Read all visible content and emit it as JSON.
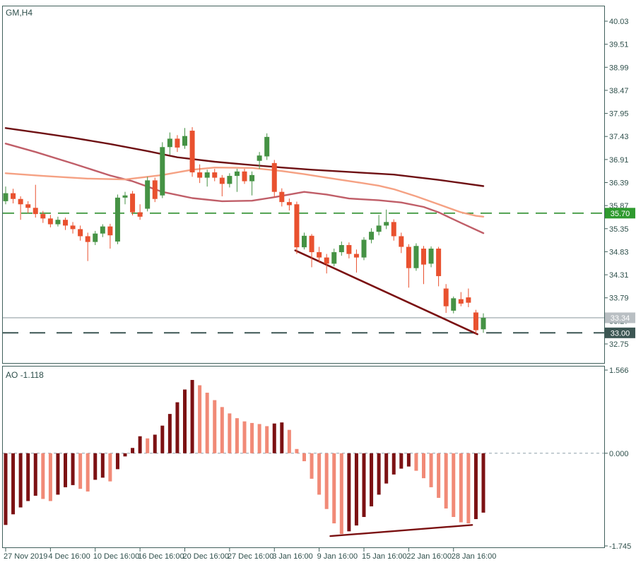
{
  "window": {
    "symbol_label": "GM,H4"
  },
  "ao_panel": {
    "name": "AO",
    "value": "-1.118"
  },
  "colors": {
    "background": "#ffffff",
    "border": "#41605c",
    "text": "#2e4f4b",
    "bull_candle": "#459244",
    "bear_candle": "#e9512f",
    "ma_slow": "#6e1013",
    "ma_medium": "#c05e68",
    "ma_fast": "#f5a183",
    "trendline": "#7a0f10",
    "level_green": "#2f8f2f",
    "bid_line": "#a9b2b6",
    "bid_box": "#b9bfc3",
    "level_dark": "#3c5653",
    "ao_up": "#7c1113",
    "ao_down": "#f18a77",
    "ao_zero_line": "#8fa0ac",
    "box_text": "#ffffff"
  },
  "chart_data": {
    "type": "candlestick",
    "symbol": "GM",
    "timeframe": "H4",
    "title": "GM,H4",
    "indicator": "Awesome Oscillator",
    "grid": false,
    "price_axis": {
      "side": "right",
      "ticks": [
        40.03,
        39.51,
        38.99,
        38.47,
        37.95,
        37.43,
        36.91,
        36.39,
        35.87,
        35.35,
        34.83,
        34.31,
        33.79,
        33.27,
        32.75
      ],
      "tick_labels": [
        "40.03",
        "39.51",
        "38.99",
        "38.47",
        "37.95",
        "37.43",
        "36.91",
        "36.39",
        "35.87",
        "35.35",
        "34.83",
        "34.31",
        "33.79",
        "33.27",
        "32.75"
      ]
    },
    "time_axis": {
      "labels": [
        {
          "index": 0,
          "label": "27 Nov 2019"
        },
        {
          "index": 6,
          "label": "4 Dec 16:00"
        },
        {
          "index": 12,
          "label": "10 Dec 16:00"
        },
        {
          "index": 18,
          "label": "16 Dec 16:00"
        },
        {
          "index": 24,
          "label": "20 Dec 16:00"
        },
        {
          "index": 30,
          "label": "27 Dec 16:00"
        },
        {
          "index": 36,
          "label": "3 Jan 16:00"
        },
        {
          "index": 42,
          "label": "9 Jan 16:00"
        },
        {
          "index": 48,
          "label": "15 Jan 16:00"
        },
        {
          "index": 54,
          "label": "22 Jan 16:00"
        },
        {
          "index": 60,
          "label": "28 Jan 16:00"
        }
      ]
    },
    "candles": [
      [
        35.97,
        36.3,
        35.9,
        36.15
      ],
      [
        36.15,
        36.25,
        35.92,
        36.02
      ],
      [
        36.02,
        36.08,
        35.55,
        35.9
      ],
      [
        35.9,
        35.97,
        35.7,
        35.82
      ],
      [
        35.82,
        36.34,
        35.6,
        35.68
      ],
      [
        35.68,
        35.75,
        35.48,
        35.58
      ],
      [
        35.58,
        35.66,
        35.38,
        35.45
      ],
      [
        35.45,
        35.62,
        35.4,
        35.55
      ],
      [
        35.55,
        35.6,
        35.32,
        35.42
      ],
      [
        35.42,
        35.5,
        35.24,
        35.34
      ],
      [
        35.34,
        35.42,
        35.08,
        35.18
      ],
      [
        35.18,
        35.26,
        34.62,
        35.05
      ],
      [
        35.05,
        35.3,
        34.98,
        35.24
      ],
      [
        35.24,
        35.45,
        35.16,
        35.4
      ],
      [
        35.4,
        35.46,
        34.9,
        35.2
      ],
      [
        35.06,
        36.12,
        35.0,
        36.05
      ],
      [
        36.05,
        36.18,
        35.9,
        36.1
      ],
      [
        36.14,
        36.2,
        35.65,
        35.72
      ],
      [
        35.72,
        35.9,
        35.55,
        35.62
      ],
      [
        35.8,
        36.52,
        35.74,
        36.44
      ],
      [
        36.44,
        36.5,
        35.95,
        36.02
      ],
      [
        36.1,
        37.3,
        36.04,
        37.19
      ],
      [
        37.19,
        37.52,
        37.02,
        37.38
      ],
      [
        37.38,
        37.46,
        37.08,
        37.18
      ],
      [
        37.22,
        37.62,
        37.15,
        37.44
      ],
      [
        37.56,
        37.64,
        36.52,
        36.62
      ],
      [
        36.62,
        36.8,
        36.38,
        36.5
      ],
      [
        36.5,
        36.68,
        36.3,
        36.62
      ],
      [
        36.62,
        36.7,
        36.42,
        36.5
      ],
      [
        36.5,
        36.56,
        36.08,
        36.36
      ],
      [
        36.36,
        36.6,
        36.28,
        36.54
      ],
      [
        36.54,
        36.7,
        36.18,
        36.64
      ],
      [
        36.64,
        36.7,
        36.36,
        36.42
      ],
      [
        36.42,
        36.64,
        36.1,
        36.56
      ],
      [
        36.88,
        37.08,
        36.7,
        37.0
      ],
      [
        36.98,
        37.5,
        36.9,
        37.42
      ],
      [
        36.83,
        36.9,
        36.05,
        36.18
      ],
      [
        36.18,
        36.26,
        35.85,
        35.95
      ],
      [
        35.95,
        36.03,
        35.76,
        35.88
      ],
      [
        35.9,
        35.96,
        34.78,
        34.93
      ],
      [
        34.93,
        35.26,
        34.88,
        35.19
      ],
      [
        35.19,
        35.23,
        34.48,
        34.82
      ],
      [
        34.82,
        34.94,
        34.58,
        34.7
      ],
      [
        34.7,
        34.78,
        34.34,
        34.56
      ],
      [
        34.56,
        34.9,
        34.5,
        34.82
      ],
      [
        34.82,
        35.06,
        34.74,
        34.98
      ],
      [
        34.98,
        35.04,
        34.68,
        34.78
      ],
      [
        34.78,
        34.88,
        34.36,
        34.7
      ],
      [
        34.7,
        35.16,
        34.64,
        35.1
      ],
      [
        35.1,
        35.36,
        35.02,
        35.28
      ],
      [
        35.28,
        35.66,
        35.2,
        35.42
      ],
      [
        35.42,
        35.78,
        35.34,
        35.5
      ],
      [
        35.5,
        35.56,
        35.08,
        35.18
      ],
      [
        35.18,
        35.26,
        34.8,
        34.94
      ],
      [
        34.94,
        35.0,
        34.02,
        34.46
      ],
      [
        34.46,
        35.02,
        34.4,
        34.96
      ],
      [
        34.9,
        34.96,
        34.1,
        34.54
      ],
      [
        34.56,
        34.95,
        34.48,
        34.9
      ],
      [
        34.9,
        34.94,
        34.05,
        34.28
      ],
      [
        34.0,
        34.1,
        33.45,
        33.6
      ],
      [
        33.5,
        33.82,
        33.44,
        33.78
      ],
      [
        33.76,
        33.92,
        33.6,
        33.66
      ],
      [
        33.8,
        34.0,
        33.58,
        33.68
      ],
      [
        33.46,
        33.52,
        32.98,
        33.06
      ],
      [
        33.08,
        33.44,
        33.0,
        33.34
      ]
    ],
    "moving_averages": [
      {
        "name": "ma-medium",
        "color": "#c05e68",
        "width": 2.4,
        "points": [
          [
            0,
            37.27
          ],
          [
            4,
            37.08
          ],
          [
            9,
            36.82
          ],
          [
            14,
            36.55
          ],
          [
            17,
            36.42
          ],
          [
            21,
            36.18
          ],
          [
            25,
            36.04
          ],
          [
            29,
            35.97
          ],
          [
            33,
            35.98
          ],
          [
            36,
            36.06
          ],
          [
            40,
            36.18
          ],
          [
            43,
            36.12
          ],
          [
            46,
            36.03
          ],
          [
            50,
            35.99
          ],
          [
            53,
            35.94
          ],
          [
            56,
            35.84
          ],
          [
            58,
            35.72
          ],
          [
            61,
            35.48
          ],
          [
            64,
            35.25
          ]
        ]
      },
      {
        "name": "ma-fast",
        "color": "#f5a183",
        "width": 2.4,
        "points": [
          [
            0,
            36.6
          ],
          [
            5,
            36.54
          ],
          [
            11,
            36.48
          ],
          [
            16,
            36.46
          ],
          [
            21,
            36.56
          ],
          [
            25,
            36.68
          ],
          [
            28,
            36.73
          ],
          [
            33,
            36.72
          ],
          [
            37,
            36.65
          ],
          [
            40,
            36.58
          ],
          [
            43,
            36.5
          ],
          [
            47,
            36.4
          ],
          [
            50,
            36.32
          ],
          [
            52,
            36.24
          ],
          [
            55,
            36.08
          ],
          [
            58,
            35.9
          ],
          [
            61,
            35.72
          ],
          [
            63,
            35.64
          ],
          [
            64,
            35.62
          ]
        ]
      },
      {
        "name": "ma-slow",
        "color": "#6e1013",
        "width": 2.4,
        "points": [
          [
            0,
            37.62
          ],
          [
            5,
            37.5
          ],
          [
            9,
            37.4
          ],
          [
            14,
            37.26
          ],
          [
            19,
            37.1
          ],
          [
            23,
            36.96
          ],
          [
            28,
            36.86
          ],
          [
            32,
            36.8
          ],
          [
            37,
            36.73
          ],
          [
            41,
            36.68
          ],
          [
            47,
            36.62
          ],
          [
            52,
            36.57
          ],
          [
            58,
            36.45
          ],
          [
            61,
            36.38
          ],
          [
            64,
            36.31
          ]
        ]
      }
    ],
    "levels": [
      {
        "price": 35.7,
        "label": "35.70",
        "line_color": "#2f8f2f",
        "box_color": "#2f9a2f",
        "dash": "16,10",
        "width": 1.6
      },
      {
        "price": 33.34,
        "label": "33.34",
        "line_color": "#a9b2b6",
        "box_color": "#b9bfc3",
        "dash": null,
        "width": 1.4
      },
      {
        "price": 33.0,
        "label": "33.00",
        "line_color": "#3c5653",
        "box_color": "#3c5653",
        "dash": "22,16",
        "width": 2
      }
    ],
    "trendlines": [
      {
        "panel": "price",
        "from": [
          38.8,
          34.86
        ],
        "to": [
          63.2,
          32.97
        ],
        "color": "#7a0f10",
        "width": 2.6
      },
      {
        "panel": "ao",
        "from": [
          43.5,
          -1.56
        ],
        "to": [
          62.5,
          -1.35
        ],
        "color": "#7a0f10",
        "width": 2.4
      }
    ],
    "ao": {
      "name": "AO",
      "last_value": -1.118,
      "ticks": [
        1.566,
        0.0,
        -1.745
      ],
      "tick_labels": [
        "1.566",
        "0.000",
        "-1.745"
      ],
      "values": [
        -1.35,
        -1.15,
        -1.02,
        -0.9,
        -0.8,
        -0.86,
        -0.9,
        -0.78,
        -0.64,
        -0.6,
        -0.67,
        -0.72,
        -0.5,
        -0.46,
        -0.53,
        -0.3,
        -0.06,
        0.1,
        0.32,
        0.28,
        0.35,
        0.52,
        0.74,
        0.96,
        1.2,
        1.38,
        1.28,
        1.14,
        1.0,
        0.87,
        0.75,
        0.66,
        0.6,
        0.57,
        0.55,
        0.51,
        0.56,
        0.58,
        0.44,
        0.08,
        -0.15,
        -0.48,
        -0.78,
        -1.05,
        -1.32,
        -1.52,
        -1.47,
        -1.36,
        -1.2,
        -1.0,
        -0.78,
        -0.57,
        -0.4,
        -0.29,
        -0.25,
        -0.33,
        -0.47,
        -0.64,
        -0.84,
        -1.04,
        -1.2,
        -1.3,
        -1.32,
        -1.24,
        -1.118
      ]
    }
  }
}
